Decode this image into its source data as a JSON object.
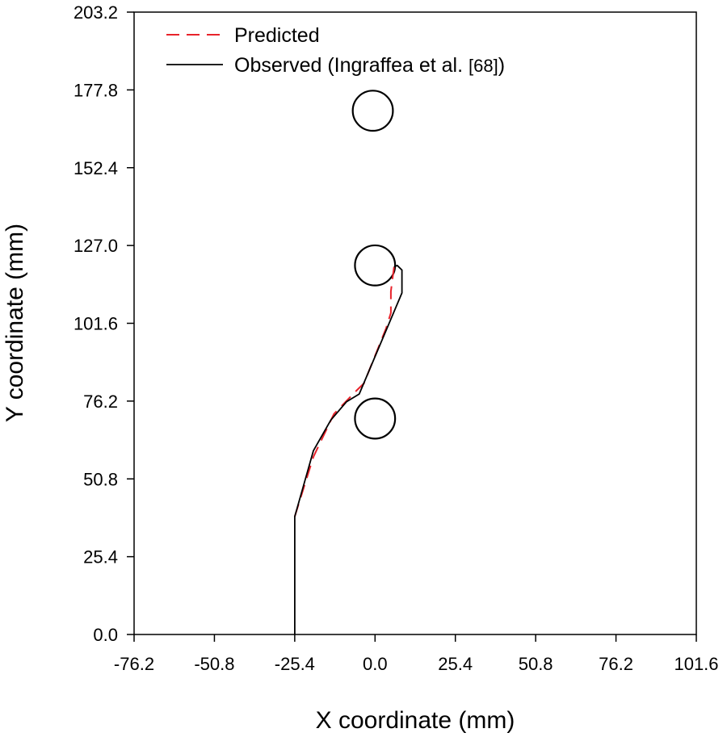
{
  "chart_data": {
    "type": "line",
    "xlabel": "X coordinate (mm)",
    "ylabel": "Y coordinate (mm)",
    "xlim": [
      -76.2,
      101.6
    ],
    "ylim": [
      0.0,
      203.2
    ],
    "x_ticks": [
      "-76.2",
      "-50.8",
      "-25.4",
      "0.0",
      "25.4",
      "50.8",
      "76.2",
      "101.6"
    ],
    "y_ticks": [
      "0.0",
      "25.4",
      "50.8",
      "76.2",
      "101.6",
      "127.0",
      "152.4",
      "177.8",
      "203.2"
    ],
    "grid": false,
    "legend_position": "top-left",
    "legend_observed_ref": "[68]",
    "series": [
      {
        "name": "Predicted",
        "color": "#e8232b",
        "style": "dashed",
        "points": [
          [
            -25.4,
            38.5
          ],
          [
            -19.5,
            58.0
          ],
          [
            -13.0,
            72.0
          ],
          [
            -6.0,
            79.5
          ],
          [
            -3.5,
            82.0
          ],
          [
            3.5,
            100.0
          ],
          [
            5.0,
            105.0
          ],
          [
            5.0,
            112.0
          ],
          [
            5.5,
            116.0
          ],
          [
            6.0,
            120.0
          ]
        ]
      },
      {
        "name": "Observed (Ingraffea et al. ",
        "color": "#000000",
        "style": "solid",
        "points": [
          [
            -25.4,
            0.0
          ],
          [
            -25.4,
            38.5
          ],
          [
            -19.5,
            60.0
          ],
          [
            -14.0,
            70.0
          ],
          [
            -9.0,
            76.0
          ],
          [
            -5.0,
            78.5
          ],
          [
            8.5,
            111.5
          ],
          [
            8.5,
            119.0
          ],
          [
            7.0,
            120.5
          ],
          [
            6.0,
            120.0
          ]
        ]
      }
    ],
    "holes": [
      {
        "name": "upper-hole",
        "x": -0.7,
        "y": 171.0,
        "radius": 6.35
      },
      {
        "name": "middle-hole",
        "x": 0.0,
        "y": 120.5,
        "radius": 6.35
      },
      {
        "name": "lower-hole",
        "x": 0.0,
        "y": 70.5,
        "radius": 6.35
      }
    ]
  }
}
